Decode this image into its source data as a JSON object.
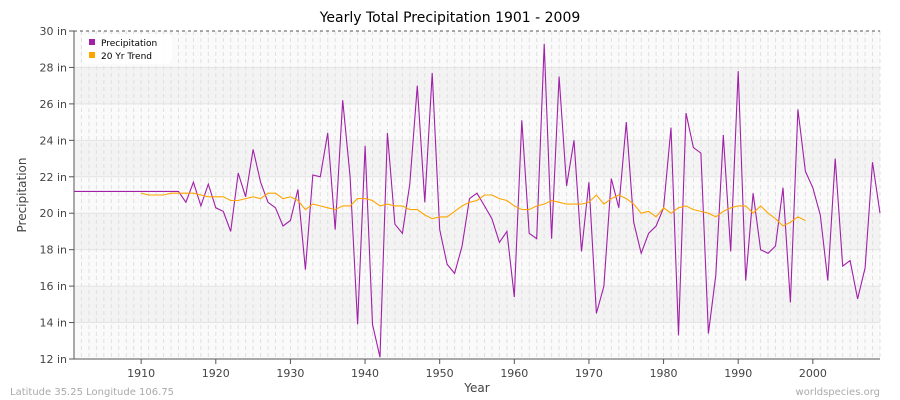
{
  "chart_data": {
    "type": "line",
    "title": "Yearly Total Precipitation 1901 - 2009",
    "xlabel": "Year",
    "ylabel": "Precipitation",
    "xlim": [
      1901,
      2009
    ],
    "ylim": [
      12,
      30
    ],
    "yticks": [
      12,
      14,
      16,
      18,
      20,
      22,
      24,
      26,
      28,
      30
    ],
    "ytick_labels": [
      "12 in",
      "14 in",
      "16 in",
      "18 in",
      "20 in",
      "22 in",
      "24 in",
      "26 in",
      "28 in",
      "30 in"
    ],
    "xticks": [
      1910,
      1920,
      1930,
      1940,
      1950,
      1960,
      1970,
      1980,
      1990,
      2000
    ],
    "xtick_labels": [
      "1910",
      "1920",
      "1930",
      "1940",
      "1950",
      "1960",
      "1970",
      "1980",
      "1990",
      "2000"
    ],
    "grid": true,
    "legend": "top-left",
    "series": [
      {
        "name": "Precipitation",
        "color": "#a020a8",
        "x_start": 1901,
        "values": [
          21.2,
          21.2,
          21.2,
          21.2,
          21.2,
          21.2,
          21.2,
          21.2,
          21.2,
          21.2,
          21.2,
          21.2,
          21.2,
          21.2,
          21.2,
          20.6,
          21.7,
          20.4,
          21.6,
          20.3,
          20.1,
          19.0,
          22.2,
          20.9,
          23.5,
          21.7,
          20.6,
          20.3,
          19.3,
          19.6,
          21.3,
          16.9,
          22.1,
          22.0,
          24.4,
          19.1,
          26.2,
          22.0,
          13.9,
          23.7,
          13.9,
          12.1,
          24.4,
          19.4,
          18.9,
          21.6,
          27.0,
          20.6,
          27.7,
          19.1,
          17.2,
          16.7,
          18.2,
          20.8,
          21.1,
          20.4,
          19.7,
          18.4,
          19.0,
          15.4,
          25.1,
          18.9,
          18.6,
          29.3,
          18.6,
          27.5,
          21.5,
          24.0,
          17.9,
          21.7,
          14.5,
          16.0,
          21.9,
          20.3,
          25.0,
          19.5,
          17.8,
          18.9,
          19.3,
          20.3,
          24.7,
          13.3,
          25.5,
          23.6,
          23.3,
          13.4,
          16.6,
          24.3,
          17.9,
          27.8,
          16.3,
          21.1,
          18.0,
          17.8,
          18.2,
          21.4,
          15.1,
          25.7,
          22.3,
          21.4,
          19.9,
          16.3,
          23.0,
          17.1,
          17.4,
          15.3,
          17.0,
          22.8,
          20.0
        ]
      },
      {
        "name": "20 Yr Trend",
        "color": "#ffa500",
        "x_start": 1910,
        "values": [
          21.1,
          21.0,
          21.0,
          21.0,
          21.1,
          21.1,
          21.1,
          21.1,
          21.0,
          20.9,
          20.9,
          20.9,
          20.7,
          20.7,
          20.8,
          20.9,
          20.8,
          21.1,
          21.1,
          20.8,
          20.9,
          20.7,
          20.2,
          20.5,
          20.4,
          20.3,
          20.2,
          20.4,
          20.4,
          20.8,
          20.8,
          20.7,
          20.4,
          20.5,
          20.4,
          20.4,
          20.2,
          20.2,
          19.9,
          19.7,
          19.8,
          19.8,
          20.1,
          20.4,
          20.6,
          20.7,
          21.0,
          21.0,
          20.8,
          20.7,
          20.4,
          20.2,
          20.2,
          20.4,
          20.5,
          20.7,
          20.6,
          20.5,
          20.5,
          20.5,
          20.6,
          21.0,
          20.5,
          20.8,
          21.0,
          20.8,
          20.5,
          20.0,
          20.1,
          19.8,
          20.3,
          20.0,
          20.3,
          20.4,
          20.2,
          20.1,
          20.0,
          19.8,
          20.1,
          20.3,
          20.4,
          20.4,
          20.0,
          20.4,
          20.0,
          19.7,
          19.3,
          19.5,
          19.8,
          19.6
        ]
      }
    ]
  },
  "footer": {
    "location": "Latitude 35.25 Longitude 106.75",
    "source": "worldspecies.org"
  }
}
